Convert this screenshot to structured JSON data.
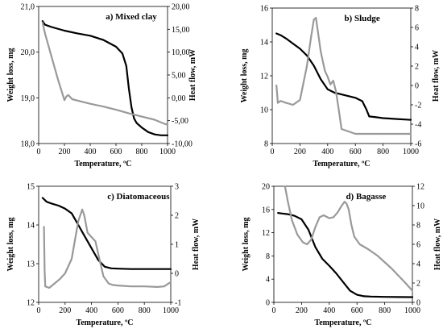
{
  "chart_data": [
    {
      "type": "line",
      "title": "a) Mixed clay",
      "xlabel": "Temperature, ºC",
      "ylabel": "Weight loss, mg",
      "y2label": "Heat flow, mW",
      "xlim": [
        0,
        1000
      ],
      "ylim": [
        18,
        21
      ],
      "y2lim": [
        -10,
        20
      ],
      "xticks": [
        "0",
        "200",
        "400",
        "600",
        "800",
        "1000"
      ],
      "yticks": [
        "18,0",
        "19,0",
        "20,0",
        "21,0"
      ],
      "y2ticks": [
        "-10,00",
        "-5,00",
        "0,00",
        "5,00",
        "10,00",
        "15,00",
        "20,00"
      ],
      "series": [
        {
          "axis": "left",
          "color": "#000000",
          "x": [
            30,
            50,
            100,
            200,
            300,
            400,
            500,
            600,
            650,
            680,
            700,
            720,
            740,
            760,
            800,
            850,
            900,
            950,
            1000
          ],
          "y": [
            20.68,
            20.6,
            20.55,
            20.47,
            20.41,
            20.36,
            20.27,
            20.12,
            19.97,
            19.7,
            19.2,
            18.8,
            18.55,
            18.45,
            18.35,
            18.25,
            18.2,
            18.18,
            18.18
          ]
        },
        {
          "axis": "right",
          "color": "#999999",
          "x": [
            30,
            50,
            100,
            150,
            200,
            215,
            230,
            260,
            300,
            400,
            500,
            600,
            700,
            800,
            900,
            950,
            1000
          ],
          "y": [
            16.5,
            14.0,
            9.0,
            4.0,
            -0.5,
            0.3,
            0.6,
            -0.3,
            -0.6,
            -1.3,
            -1.9,
            -2.6,
            -3.4,
            -4.1,
            -4.8,
            -5.4,
            -5.9
          ]
        }
      ]
    },
    {
      "type": "line",
      "title": "b) Sludge",
      "xlabel": "Temperature, ºC",
      "ylabel": "Weight loss, mg",
      "y2label": "Heat flow, mW",
      "xlim": [
        0,
        1000
      ],
      "ylim": [
        8,
        16
      ],
      "y2lim": [
        -6,
        8
      ],
      "xticks": [
        "0",
        "200",
        "400",
        "600",
        "800",
        "1000"
      ],
      "yticks": [
        "8",
        "10",
        "12",
        "14",
        "16"
      ],
      "y2ticks": [
        "-6",
        "-4",
        "-2",
        "0",
        "2",
        "4",
        "6",
        "8"
      ],
      "series": [
        {
          "axis": "left",
          "color": "#000000",
          "x": [
            30,
            60,
            100,
            150,
            200,
            250,
            300,
            350,
            400,
            450,
            500,
            550,
            600,
            650,
            680,
            700,
            750,
            800,
            900,
            1000
          ],
          "y": [
            14.5,
            14.4,
            14.2,
            13.9,
            13.6,
            13.2,
            12.6,
            11.8,
            11.2,
            11.0,
            10.9,
            10.8,
            10.7,
            10.5,
            10.0,
            9.6,
            9.55,
            9.5,
            9.45,
            9.4
          ],
          "_": null
        },
        {
          "axis": "right",
          "color": "#999999",
          "x": [
            30,
            35,
            40,
            60,
            100,
            150,
            200,
            250,
            280,
            300,
            315,
            330,
            350,
            380,
            400,
            420,
            440,
            460,
            480,
            500,
            600,
            700,
            800,
            900,
            1000
          ],
          "y": [
            0.0,
            -0.8,
            -1.8,
            -1.6,
            -1.8,
            -2.0,
            -1.5,
            2.0,
            5.0,
            6.8,
            7.0,
            5.5,
            3.5,
            1.5,
            0.9,
            0.1,
            0.5,
            -0.6,
            -2.5,
            -4.5,
            -5.0,
            -5.0,
            -5.0,
            -5.0,
            -5.0
          ]
        }
      ]
    },
    {
      "type": "line",
      "title": "c) Diatomaceous",
      "xlabel": "Temperature, ºC",
      "ylabel": "Weight loss, mg",
      "y2label": "Heat flow, mW",
      "xlim": [
        0,
        1000
      ],
      "ylim": [
        12,
        15
      ],
      "y2lim": [
        -1,
        3
      ],
      "xticks": [
        "0",
        "200",
        "400",
        "600",
        "800",
        "1000"
      ],
      "yticks": [
        "12",
        "13",
        "14",
        "15"
      ],
      "y2ticks": [
        "-1",
        "0",
        "1",
        "2",
        "3"
      ],
      "series": [
        {
          "axis": "left",
          "color": "#000000",
          "x": [
            30,
            60,
            100,
            150,
            200,
            250,
            300,
            350,
            400,
            450,
            500,
            550,
            600,
            700,
            800,
            900,
            1000
          ],
          "y": [
            14.7,
            14.6,
            14.55,
            14.5,
            14.42,
            14.3,
            14.0,
            13.7,
            13.4,
            13.1,
            12.92,
            12.88,
            12.87,
            12.86,
            12.86,
            12.86,
            12.86
          ]
        },
        {
          "axis": "right",
          "color": "#999999",
          "x": [
            40,
            45,
            50,
            80,
            120,
            160,
            200,
            250,
            300,
            330,
            345,
            370,
            400,
            430,
            460,
            490,
            530,
            560,
            600,
            700,
            800,
            900,
            950,
            1000
          ],
          "y": [
            1.6,
            0.1,
            -0.45,
            -0.5,
            -0.35,
            -0.2,
            0.0,
            0.5,
            1.8,
            2.2,
            2.0,
            1.4,
            1.25,
            1.1,
            0.5,
            -0.1,
            -0.35,
            -0.4,
            -0.42,
            -0.45,
            -0.45,
            -0.47,
            -0.45,
            -0.3
          ]
        }
      ]
    },
    {
      "type": "line",
      "title": "d) Bagasse",
      "xlabel": "Temperature, ºC",
      "ylabel": "Weight loss, mg",
      "y2label": "Heat flow, mW",
      "xlim": [
        0,
        1000
      ],
      "ylim": [
        0,
        20
      ],
      "y2lim": [
        0,
        12
      ],
      "xticks": [
        "0",
        "200",
        "400",
        "600",
        "800",
        "1000"
      ],
      "yticks": [
        "0",
        "4",
        "8",
        "12",
        "16",
        "20"
      ],
      "y2ticks": [
        "0",
        "2",
        "4",
        "6",
        "8",
        "10",
        "12"
      ],
      "series": [
        {
          "axis": "left",
          "color": "#000000",
          "x": [
            30,
            60,
            100,
            150,
            200,
            250,
            300,
            350,
            400,
            450,
            500,
            550,
            600,
            650,
            700,
            800,
            900,
            1000
          ],
          "y": [
            15.4,
            15.3,
            15.2,
            14.9,
            14.3,
            12.5,
            9.5,
            7.5,
            6.3,
            5.0,
            3.5,
            2.0,
            1.3,
            1.05,
            1.0,
            0.95,
            0.92,
            0.9
          ]
        },
        {
          "axis": "right",
          "color": "#999999",
          "x": [
            80,
            100,
            130,
            170,
            210,
            240,
            270,
            300,
            330,
            360,
            400,
            430,
            460,
            490,
            510,
            525,
            540,
            560,
            580,
            620,
            680,
            750,
            850,
            950,
            1000
          ],
          "y": [
            12.0,
            10.5,
            8.5,
            7.0,
            6.2,
            6.0,
            6.5,
            7.8,
            8.8,
            9.0,
            8.7,
            8.8,
            9.3,
            10.0,
            10.4,
            10.2,
            9.6,
            8.0,
            6.8,
            6.0,
            5.5,
            4.8,
            3.5,
            2.0,
            1.2
          ]
        }
      ]
    }
  ]
}
